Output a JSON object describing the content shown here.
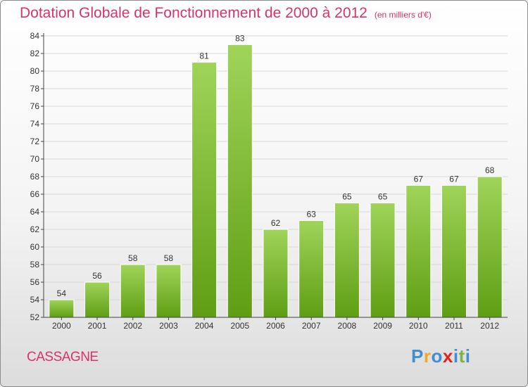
{
  "header": {
    "title": "Dotation Globale de Fonctionnement de 2000 à 2012",
    "subtitle": "(en milliers d'€)"
  },
  "footer": {
    "place": "CASSAGNE",
    "brand_letters": [
      "P",
      "r",
      "o",
      "x",
      "i",
      "t",
      "i"
    ],
    "brand_colors": [
      "#3f8fd2",
      "#f5a623",
      "#3f8fd2",
      "#e2231a",
      "#3f8fd2",
      "#7cb342",
      "#3f8fd2"
    ]
  },
  "colors": {
    "bar_top": "#9fd459",
    "bar_bottom": "#5f9e14",
    "axis": "#444444",
    "grid": "#d8d8d8"
  },
  "chart_data": {
    "type": "bar",
    "title": "Dotation Globale de Fonctionnement de 2000 à 2012",
    "subtitle": "(en milliers d'€)",
    "categories": [
      "2000",
      "2001",
      "2002",
      "2003",
      "2004",
      "2005",
      "2006",
      "2007",
      "2008",
      "2009",
      "2010",
      "2011",
      "2012"
    ],
    "values": [
      54,
      56,
      58,
      58,
      81,
      83,
      62,
      63,
      65,
      65,
      67,
      67,
      68
    ],
    "ylim": [
      52,
      84
    ],
    "yticks": [
      52,
      54,
      56,
      58,
      60,
      62,
      64,
      66,
      68,
      70,
      72,
      74,
      76,
      78,
      80,
      82,
      84
    ],
    "xlabel": "",
    "ylabel": "",
    "grid": "horizontal",
    "legend": "none"
  }
}
